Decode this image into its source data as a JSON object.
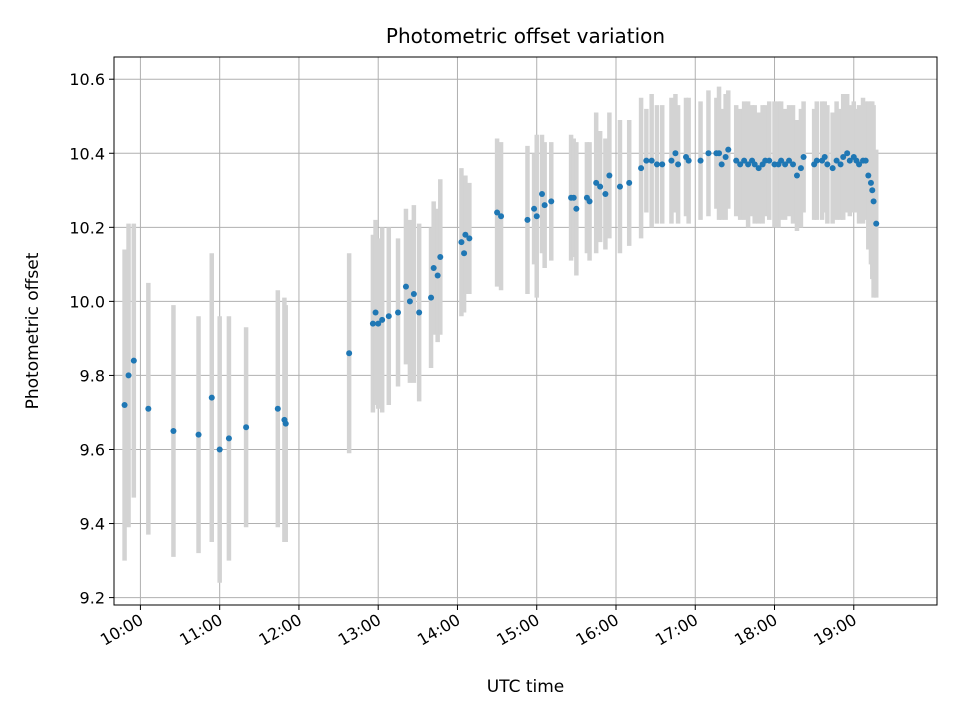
{
  "chart_data": {
    "type": "scatter",
    "title": "Photometric offset variation",
    "xlabel": "UTC time",
    "ylabel": "Photometric offset",
    "xlim": [
      "09:40",
      "20:03"
    ],
    "ylim": [
      9.18,
      10.66
    ],
    "x_ticks": [
      "10:00",
      "11:00",
      "12:00",
      "13:00",
      "14:00",
      "15:00",
      "16:00",
      "17:00",
      "18:00",
      "19:00"
    ],
    "y_ticks": [
      "9.2",
      "9.4",
      "9.6",
      "9.8",
      "10.0",
      "10.2",
      "10.4",
      "10.6"
    ],
    "grid": true,
    "marker_color": "#1f77b4",
    "errorbar_color": "#d3d3d3",
    "series": [
      {
        "x": [
          "09:48",
          "09:51",
          "09:55",
          "10:06",
          "10:25",
          "10:44",
          "10:54",
          "11:00",
          "11:07",
          "11:20",
          "11:44",
          "11:49",
          "11:50",
          "12:38",
          "12:56",
          "12:58",
          "13:00",
          "13:03",
          "13:08",
          "13:15",
          "13:21",
          "13:24",
          "13:27",
          "13:31",
          "13:40",
          "13:42",
          "13:45",
          "13:47",
          "14:03",
          "14:05",
          "14:06",
          "14:09",
          "14:30",
          "14:33",
          "14:53",
          "14:58",
          "15:00",
          "15:04",
          "15:06",
          "15:11",
          "15:26",
          "15:28",
          "15:30",
          "15:38",
          "15:40",
          "15:45",
          "15:48",
          "15:52",
          "15:55",
          "16:03",
          "16:10",
          "16:19",
          "16:23",
          "16:27",
          "16:31",
          "16:35",
          "16:42",
          "16:45",
          "16:47",
          "16:53",
          "16:55",
          "17:04",
          "17:10",
          "17:16",
          "17:18",
          "17:20",
          "17:23",
          "17:25",
          "17:31",
          "17:34",
          "17:37",
          "17:40",
          "17:43",
          "17:45",
          "17:48",
          "17:51",
          "17:53",
          "17:56",
          "18:00",
          "18:03",
          "18:05",
          "18:08",
          "18:11",
          "18:14",
          "18:17",
          "18:20",
          "18:22",
          "18:30",
          "18:32",
          "18:36",
          "18:38",
          "18:40",
          "18:44",
          "18:47",
          "18:50",
          "18:52",
          "18:55",
          "18:57",
          "19:00",
          "19:02",
          "19:04",
          "19:07",
          "19:09",
          "19:11",
          "19:13",
          "19:14",
          "19:15",
          "19:17"
        ],
        "y": [
          9.72,
          9.8,
          9.84,
          9.71,
          9.65,
          9.64,
          9.74,
          9.6,
          9.63,
          9.66,
          9.71,
          9.68,
          9.67,
          9.86,
          9.94,
          9.97,
          9.94,
          9.95,
          9.96,
          9.97,
          10.04,
          10.0,
          10.02,
          9.97,
          10.01,
          10.09,
          10.07,
          10.12,
          10.16,
          10.13,
          10.18,
          10.17,
          10.24,
          10.23,
          10.22,
          10.25,
          10.23,
          10.29,
          10.26,
          10.27,
          10.28,
          10.28,
          10.25,
          10.28,
          10.27,
          10.32,
          10.31,
          10.29,
          10.34,
          10.31,
          10.32,
          10.36,
          10.38,
          10.38,
          10.37,
          10.37,
          10.38,
          10.4,
          10.37,
          10.39,
          10.38,
          10.38,
          10.4,
          10.4,
          10.4,
          10.37,
          10.39,
          10.41,
          10.38,
          10.37,
          10.38,
          10.37,
          10.38,
          10.37,
          10.36,
          10.37,
          10.38,
          10.38,
          10.37,
          10.37,
          10.38,
          10.37,
          10.38,
          10.37,
          10.34,
          10.36,
          10.39,
          10.37,
          10.38,
          10.38,
          10.39,
          10.37,
          10.36,
          10.38,
          10.37,
          10.39,
          10.4,
          10.38,
          10.39,
          10.38,
          10.37,
          10.38,
          10.38,
          10.34,
          10.32,
          10.3,
          10.27,
          10.21
        ],
        "yerr": [
          0.42,
          0.41,
          0.37,
          0.34,
          0.34,
          0.32,
          0.39,
          0.36,
          0.33,
          0.27,
          0.32,
          0.33,
          0.32,
          0.27,
          0.24,
          0.25,
          0.23,
          0.25,
          0.24,
          0.2,
          0.21,
          0.22,
          0.24,
          0.24,
          0.19,
          0.18,
          0.18,
          0.21,
          0.2,
          0.16,
          0.16,
          0.15,
          0.2,
          0.2,
          0.2,
          0.15,
          0.22,
          0.16,
          0.17,
          0.16,
          0.17,
          0.16,
          0.18,
          0.15,
          0.16,
          0.19,
          0.15,
          0.15,
          0.17,
          0.18,
          0.17,
          0.19,
          0.14,
          0.18,
          0.16,
          0.16,
          0.17,
          0.16,
          0.16,
          0.16,
          0.17,
          0.16,
          0.17,
          0.15,
          0.18,
          0.15,
          0.17,
          0.16,
          0.15,
          0.15,
          0.16,
          0.17,
          0.15,
          0.16,
          0.15,
          0.16,
          0.15,
          0.16,
          0.17,
          0.17,
          0.16,
          0.15,
          0.15,
          0.16,
          0.15,
          0.16,
          0.15,
          0.15,
          0.16,
          0.16,
          0.15,
          0.16,
          0.15,
          0.16,
          0.15,
          0.17,
          0.16,
          0.15,
          0.15,
          0.14,
          0.16,
          0.17,
          0.16,
          0.2,
          0.22,
          0.24,
          0.26,
          0.2
        ]
      }
    ]
  }
}
